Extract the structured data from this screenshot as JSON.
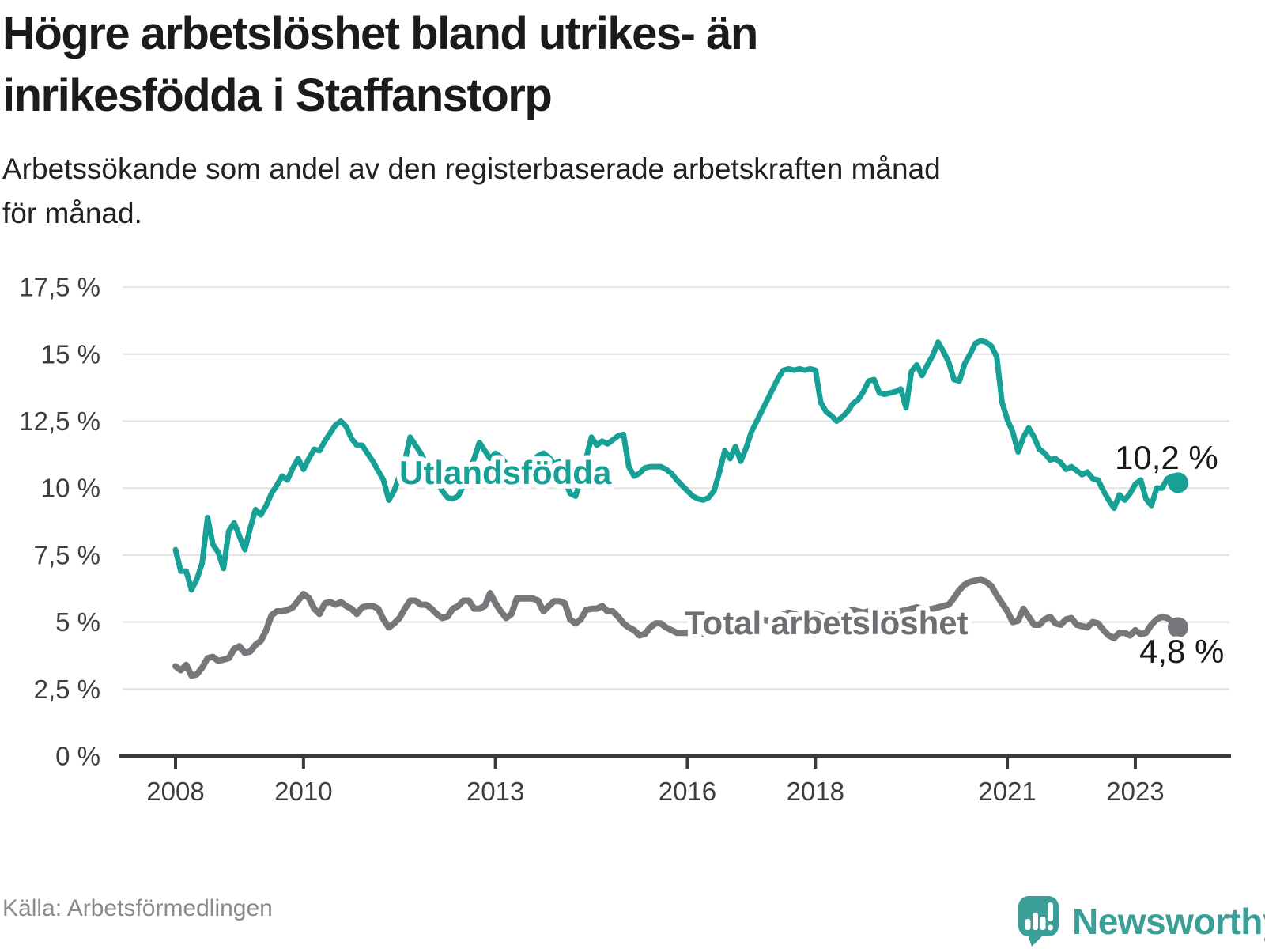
{
  "header": {
    "title_line1": "Högre arbetslöshet bland utrikes- än",
    "title_line2": "inrikesfödda i Staffanstorp",
    "subtitle_line1": "Arbetssökande som andel av den registerbaserade arbetskraften månad",
    "subtitle_line2": "för månad."
  },
  "footer": {
    "source": "Källa: Arbetsförmedlingen",
    "brand": "Newsworthy"
  },
  "colors": {
    "teal_line": "#16a096",
    "gray_line": "#77777b",
    "gray_label": "#6e6e73",
    "value_label": "#1a1a1a",
    "grid": "#e2e2e2",
    "axis": "#3a3a3a",
    "brand_teal": "#3c9f97"
  },
  "chart_data": {
    "type": "line",
    "x_unit": "month",
    "x_start": "2008-01",
    "x_end": "2023-09",
    "x_interval_months": 1,
    "x_tick_years": [
      2008,
      2010,
      2013,
      2016,
      2018,
      2021,
      2023
    ],
    "y_axis": {
      "tick_values": [
        0,
        2.5,
        5,
        7.5,
        10,
        12.5,
        15,
        17.5
      ],
      "tick_labels": [
        "0 %",
        "2,5 %",
        "5 %",
        "7,5 %",
        "10 %",
        "12,5 %",
        "15 %",
        "17,5 %"
      ],
      "range": [
        0,
        18.3
      ]
    },
    "grid": true,
    "legend_position": "inline-labels",
    "series": [
      {
        "name": "Utlandsfödda",
        "color": "#16a096",
        "end_label": "10,2 %",
        "end_value": 10.2,
        "values": [
          7.7,
          6.9,
          6.9,
          6.2,
          6.6,
          7.2,
          8.9,
          7.9,
          7.6,
          7.0,
          8.4,
          8.7,
          8.2,
          7.7,
          8.5,
          9.2,
          9.0,
          9.35,
          9.8,
          10.1,
          10.45,
          10.3,
          10.75,
          11.1,
          10.7,
          11.1,
          11.45,
          11.4,
          11.75,
          12.05,
          12.35,
          12.5,
          12.3,
          11.85,
          11.6,
          11.6,
          11.3,
          11.0,
          10.65,
          10.3,
          9.55,
          9.9,
          10.45,
          11.0,
          11.9,
          11.6,
          11.3,
          10.9,
          10.6,
          10.3,
          9.9,
          9.65,
          9.6,
          9.7,
          10.1,
          10.6,
          11.1,
          11.7,
          11.4,
          11.1,
          11.3,
          11.15,
          10.9,
          10.5,
          10.3,
          10.55,
          10.9,
          11.05,
          11.2,
          11.3,
          11.15,
          10.9,
          11.0,
          10.3,
          9.8,
          9.7,
          10.3,
          11.1,
          11.9,
          11.6,
          11.75,
          11.65,
          11.8,
          11.95,
          12.0,
          10.8,
          10.45,
          10.55,
          10.75,
          10.8,
          10.8,
          10.8,
          10.7,
          10.55,
          10.3,
          10.1,
          9.9,
          9.7,
          9.6,
          9.55,
          9.65,
          9.9,
          10.6,
          11.4,
          11.1,
          11.55,
          11.0,
          11.5,
          12.1,
          12.5,
          12.9,
          13.3,
          13.7,
          14.1,
          14.4,
          14.45,
          14.4,
          14.45,
          14.4,
          14.45,
          14.4,
          13.2,
          12.85,
          12.7,
          12.5,
          12.65,
          12.85,
          13.15,
          13.3,
          13.6,
          14.0,
          14.05,
          13.55,
          13.5,
          13.55,
          13.6,
          13.7,
          13.0,
          14.35,
          14.6,
          14.2,
          14.6,
          14.95,
          15.45,
          15.1,
          14.7,
          14.05,
          14.0,
          14.65,
          15.0,
          15.4,
          15.5,
          15.45,
          15.3,
          14.9,
          13.2,
          12.55,
          12.1,
          11.35,
          11.9,
          12.25,
          11.9,
          11.45,
          11.3,
          11.05,
          11.1,
          10.95,
          10.7,
          10.8,
          10.65,
          10.5,
          10.6,
          10.35,
          10.3,
          9.9,
          9.55,
          9.25,
          9.75,
          9.55,
          9.8,
          10.15,
          10.3,
          9.6,
          9.35,
          10.0,
          10.0,
          10.35,
          10.45,
          10.2
        ]
      },
      {
        "name": "Total arbetslöshet",
        "color": "#77777b",
        "end_label": "4,8 %",
        "end_value": 4.8,
        "values": [
          3.35,
          3.2,
          3.4,
          3.0,
          3.05,
          3.3,
          3.65,
          3.7,
          3.55,
          3.6,
          3.65,
          4.0,
          4.1,
          3.85,
          3.9,
          4.15,
          4.3,
          4.7,
          5.25,
          5.4,
          5.4,
          5.45,
          5.55,
          5.8,
          6.05,
          5.9,
          5.5,
          5.3,
          5.7,
          5.75,
          5.65,
          5.75,
          5.6,
          5.5,
          5.3,
          5.55,
          5.6,
          5.6,
          5.5,
          5.1,
          4.8,
          4.95,
          5.15,
          5.5,
          5.8,
          5.8,
          5.65,
          5.65,
          5.5,
          5.3,
          5.15,
          5.2,
          5.5,
          5.6,
          5.8,
          5.8,
          5.5,
          5.5,
          5.6,
          6.08,
          5.7,
          5.4,
          5.15,
          5.3,
          5.88,
          5.88,
          5.88,
          5.88,
          5.8,
          5.4,
          5.6,
          5.78,
          5.78,
          5.7,
          5.1,
          4.95,
          5.1,
          5.45,
          5.5,
          5.5,
          5.6,
          5.4,
          5.4,
          5.2,
          4.95,
          4.8,
          4.7,
          4.5,
          4.55,
          4.8,
          4.95,
          4.95,
          4.8,
          4.7,
          4.6,
          4.6,
          4.6,
          4.65,
          4.6,
          4.55,
          4.6,
          4.7,
          4.8,
          4.9,
          4.85,
          4.8,
          4.85,
          4.9,
          5.0,
          5.05,
          5.1,
          5.05,
          5.1,
          5.2,
          5.3,
          5.35,
          5.3,
          5.25,
          5.3,
          5.35,
          5.3,
          5.25,
          5.2,
          5.15,
          5.2,
          5.3,
          5.4,
          5.45,
          5.4,
          5.35,
          5.4,
          5.45,
          5.4,
          5.35,
          5.3,
          5.35,
          5.4,
          5.45,
          5.5,
          5.55,
          5.5,
          5.45,
          5.5,
          5.55,
          5.6,
          5.65,
          5.9,
          6.2,
          6.4,
          6.5,
          6.55,
          6.6,
          6.5,
          6.35,
          6.0,
          5.7,
          5.4,
          5.0,
          5.05,
          5.5,
          5.2,
          4.9,
          4.9,
          5.1,
          5.2,
          4.95,
          4.9,
          5.1,
          5.15,
          4.9,
          4.85,
          4.8,
          5.0,
          4.95,
          4.7,
          4.5,
          4.4,
          4.6,
          4.6,
          4.5,
          4.7,
          4.55,
          4.6,
          4.9,
          5.1,
          5.2,
          5.15,
          5.0,
          4.8
        ]
      }
    ]
  }
}
